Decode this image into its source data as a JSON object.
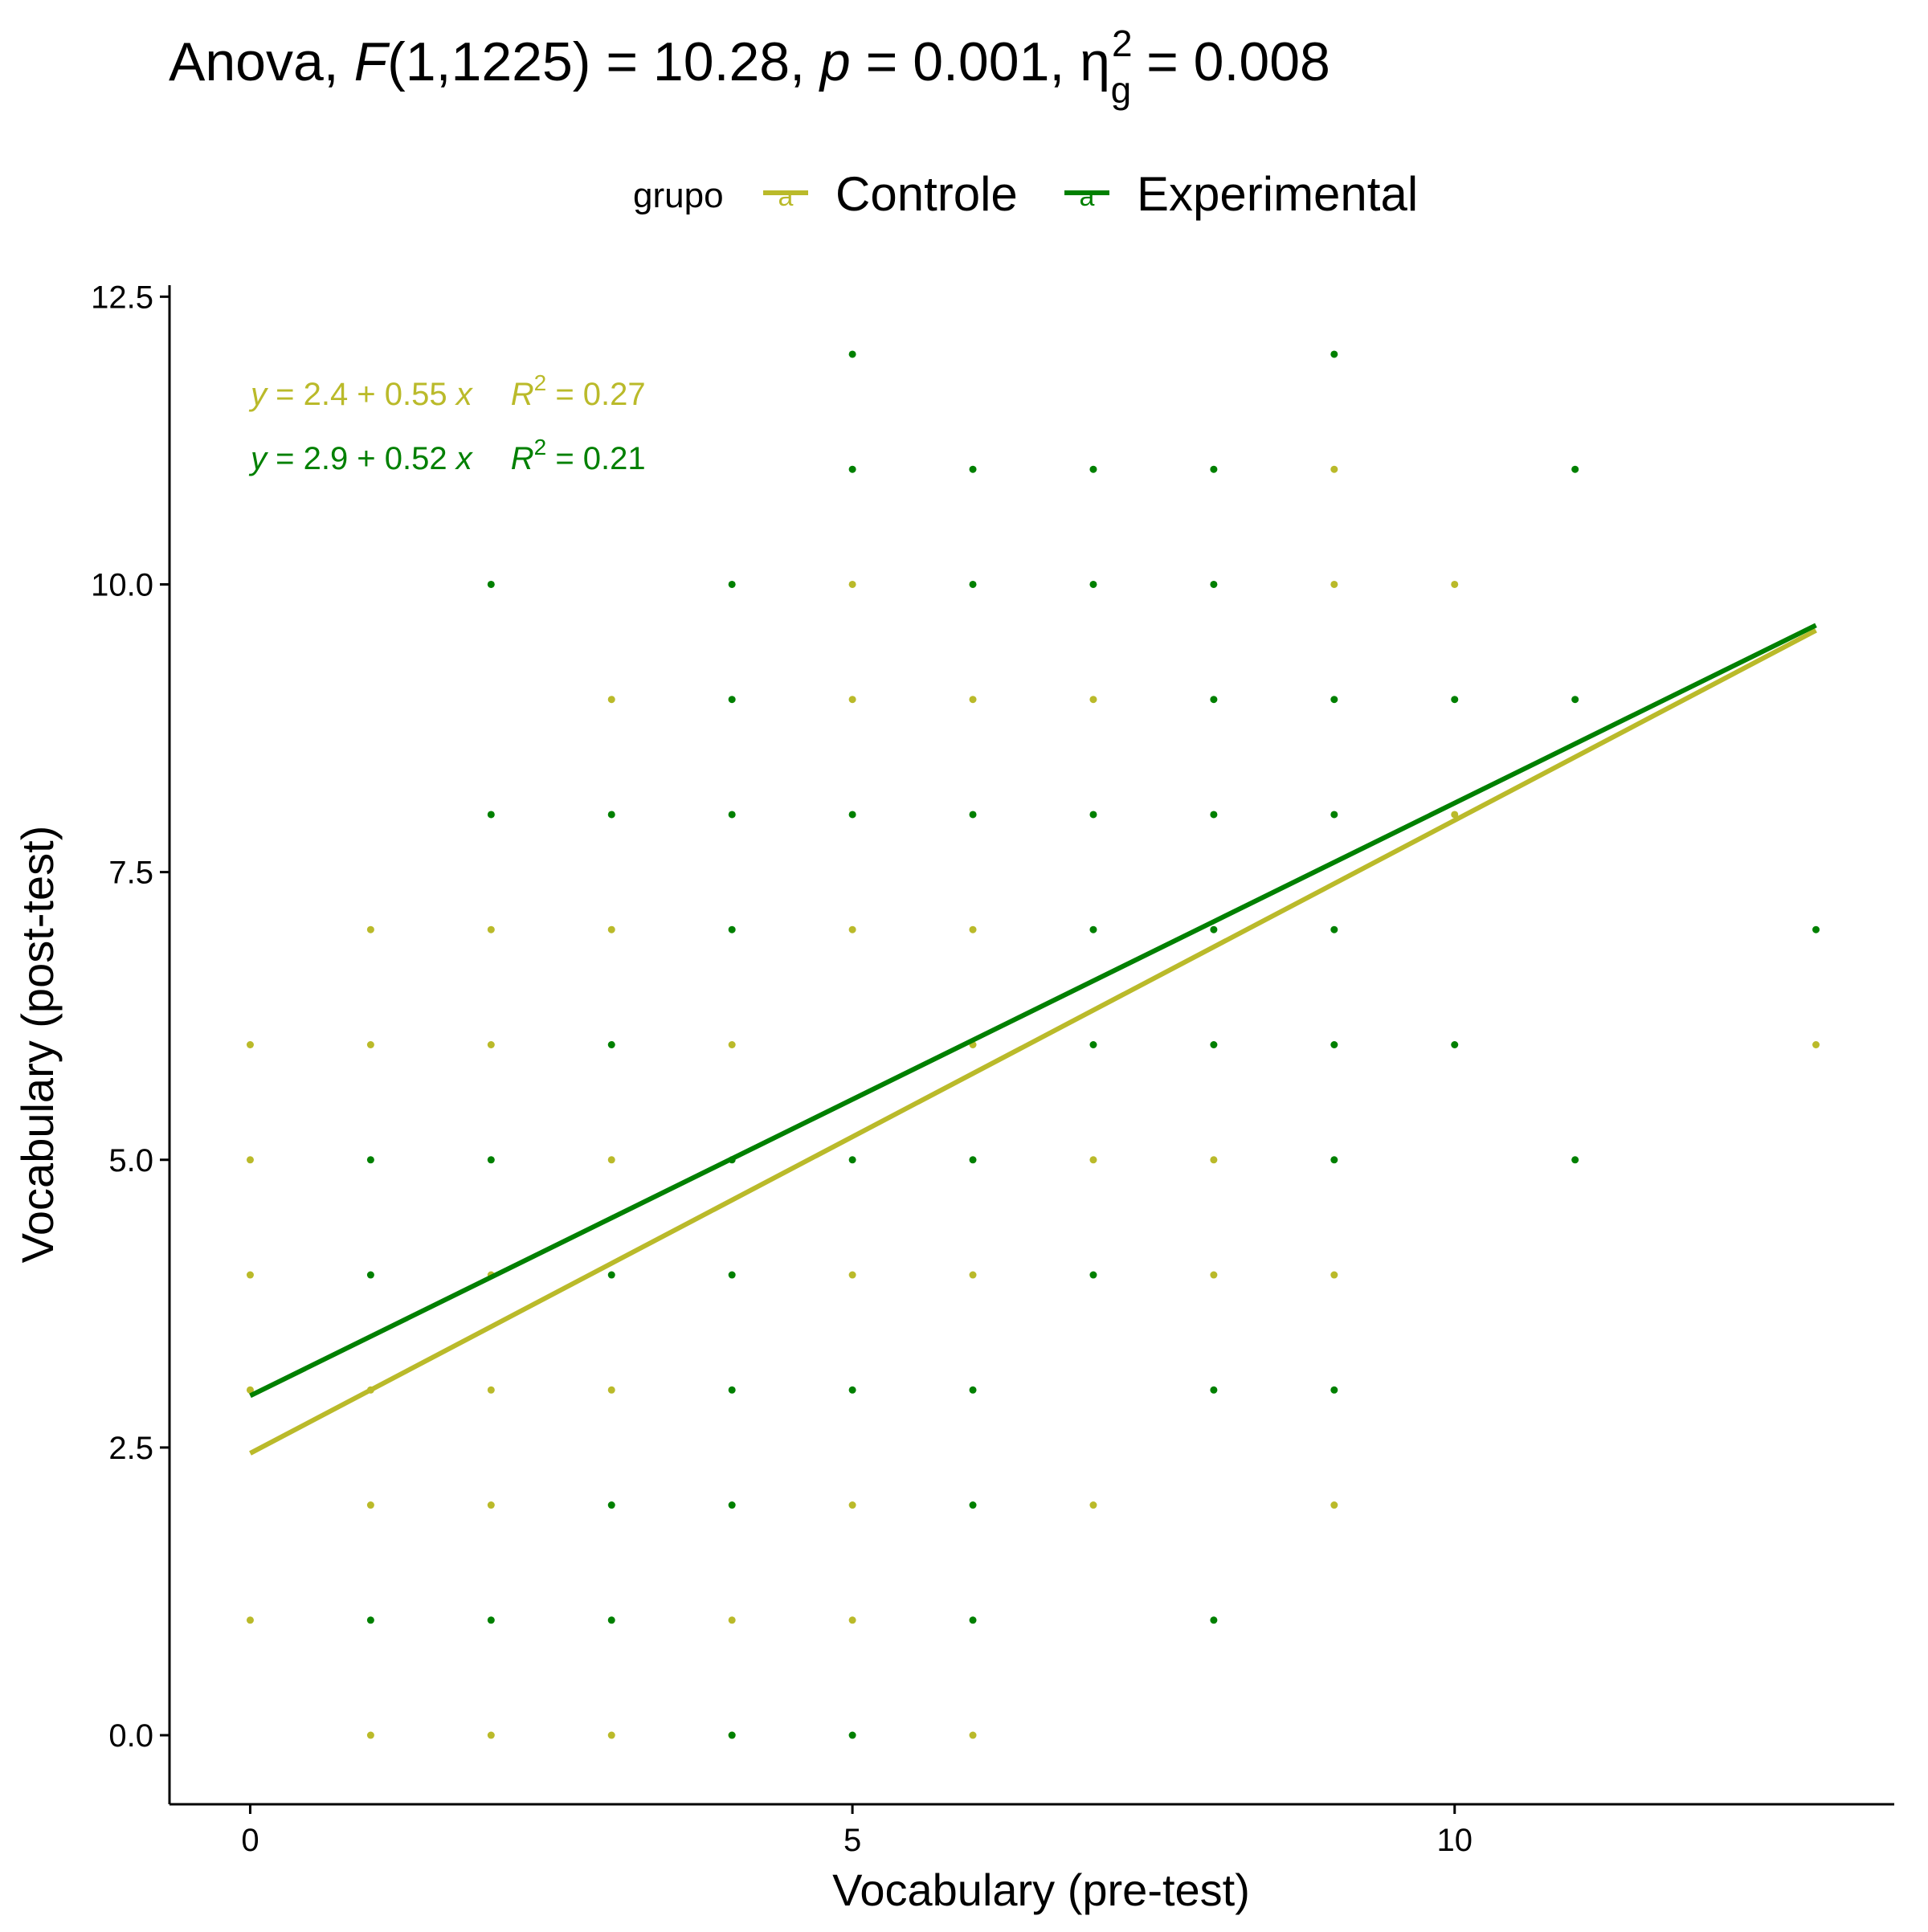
{
  "chart_data": {
    "type": "scatter",
    "title": {
      "prefix": "Anova, ",
      "stat": "F",
      "stat_args": "(1,1225) = 10.28, ",
      "p_symbol": "p",
      "p_text": " = 0.001, ",
      "eta_symbol": "η",
      "eta_sub": "g",
      "eta_sup": "2",
      "eta_text": " = 0.008"
    },
    "xlabel": "Vocabulary (pre-test)",
    "ylabel": "Vocabulary (post-test)",
    "xlim": [
      -0.67,
      13.65
    ],
    "ylim": [
      -0.6,
      12.6
    ],
    "x_ticks": [
      0,
      5,
      10
    ],
    "x_tick_labels": [
      "0",
      "5",
      "10"
    ],
    "y_ticks": [
      0,
      2.5,
      5,
      7.5,
      10,
      12.5
    ],
    "y_tick_labels": [
      "0.0",
      "2.5",
      "5.0",
      "7.5",
      "10.0",
      "12.5"
    ],
    "grid": false,
    "legend": {
      "position": "top",
      "title": "grupo",
      "key_glyph": "a",
      "entries": [
        "Controle",
        "Experimental"
      ]
    },
    "series": [
      {
        "name": "Controle",
        "color": "#BABA2A",
        "fit": {
          "intercept": 2.45,
          "slope": 0.55,
          "x_range": [
            0,
            13
          ]
        },
        "equation": {
          "y": "y",
          "body": " = 2.4 + 0.55 ",
          "x": "x",
          "r": "R",
          "r_sup": "2",
          "r_body": " = 0.27"
        },
        "points": [
          [
            0,
            6
          ],
          [
            0,
            5
          ],
          [
            0,
            4
          ],
          [
            0,
            3
          ],
          [
            0,
            1
          ],
          [
            1,
            7
          ],
          [
            1,
            6
          ],
          [
            1,
            3
          ],
          [
            1,
            2
          ],
          [
            1,
            0
          ],
          [
            2,
            7
          ],
          [
            2,
            6
          ],
          [
            2,
            4
          ],
          [
            2,
            3
          ],
          [
            2,
            2
          ],
          [
            2,
            0
          ],
          [
            3,
            9
          ],
          [
            3,
            7
          ],
          [
            3,
            5
          ],
          [
            3,
            3
          ],
          [
            3,
            0
          ],
          [
            4,
            6
          ],
          [
            4,
            1
          ],
          [
            4,
            0
          ],
          [
            5,
            10
          ],
          [
            5,
            9
          ],
          [
            5,
            7
          ],
          [
            5,
            4
          ],
          [
            5,
            2
          ],
          [
            5,
            1
          ],
          [
            6,
            9
          ],
          [
            6,
            7
          ],
          [
            6,
            6
          ],
          [
            6,
            4
          ],
          [
            6,
            0
          ],
          [
            7,
            9
          ],
          [
            7,
            5
          ],
          [
            7,
            2
          ],
          [
            8,
            5
          ],
          [
            8,
            4
          ],
          [
            9,
            11
          ],
          [
            9,
            10
          ],
          [
            9,
            4
          ],
          [
            9,
            2
          ],
          [
            10,
            10
          ],
          [
            10,
            8
          ],
          [
            13,
            6
          ]
        ]
      },
      {
        "name": "Experimental",
        "color": "#008000",
        "fit": {
          "intercept": 2.95,
          "slope": 0.515,
          "x_range": [
            0,
            13
          ]
        },
        "equation": {
          "y": "y",
          "body": " = 2.9 + 0.52 ",
          "x": "x",
          "r": "R",
          "r_sup": "2",
          "r_body": " = 0.21"
        },
        "points": [
          [
            1,
            5
          ],
          [
            1,
            4
          ],
          [
            1,
            1
          ],
          [
            2,
            10
          ],
          [
            2,
            8
          ],
          [
            2,
            5
          ],
          [
            2,
            1
          ],
          [
            3,
            8
          ],
          [
            3,
            6
          ],
          [
            3,
            4
          ],
          [
            3,
            2
          ],
          [
            3,
            1
          ],
          [
            4,
            10
          ],
          [
            4,
            9
          ],
          [
            4,
            8
          ],
          [
            4,
            7
          ],
          [
            4,
            5
          ],
          [
            4,
            4
          ],
          [
            4,
            3
          ],
          [
            4,
            2
          ],
          [
            4,
            0
          ],
          [
            5,
            12
          ],
          [
            5,
            11
          ],
          [
            5,
            8
          ],
          [
            5,
            5
          ],
          [
            5,
            3
          ],
          [
            5,
            0
          ],
          [
            6,
            11
          ],
          [
            6,
            10
          ],
          [
            6,
            8
          ],
          [
            6,
            5
          ],
          [
            6,
            3
          ],
          [
            6,
            2
          ],
          [
            6,
            1
          ],
          [
            7,
            11
          ],
          [
            7,
            10
          ],
          [
            7,
            8
          ],
          [
            7,
            7
          ],
          [
            7,
            6
          ],
          [
            7,
            4
          ],
          [
            8,
            11
          ],
          [
            8,
            10
          ],
          [
            8,
            9
          ],
          [
            8,
            8
          ],
          [
            8,
            7
          ],
          [
            8,
            6
          ],
          [
            8,
            3
          ],
          [
            8,
            1
          ],
          [
            9,
            12
          ],
          [
            9,
            9
          ],
          [
            9,
            8
          ],
          [
            9,
            7
          ],
          [
            9,
            6
          ],
          [
            9,
            5
          ],
          [
            9,
            3
          ],
          [
            10,
            9
          ],
          [
            10,
            6
          ],
          [
            11,
            11
          ],
          [
            11,
            9
          ],
          [
            11,
            5
          ],
          [
            13,
            7
          ]
        ]
      }
    ]
  }
}
